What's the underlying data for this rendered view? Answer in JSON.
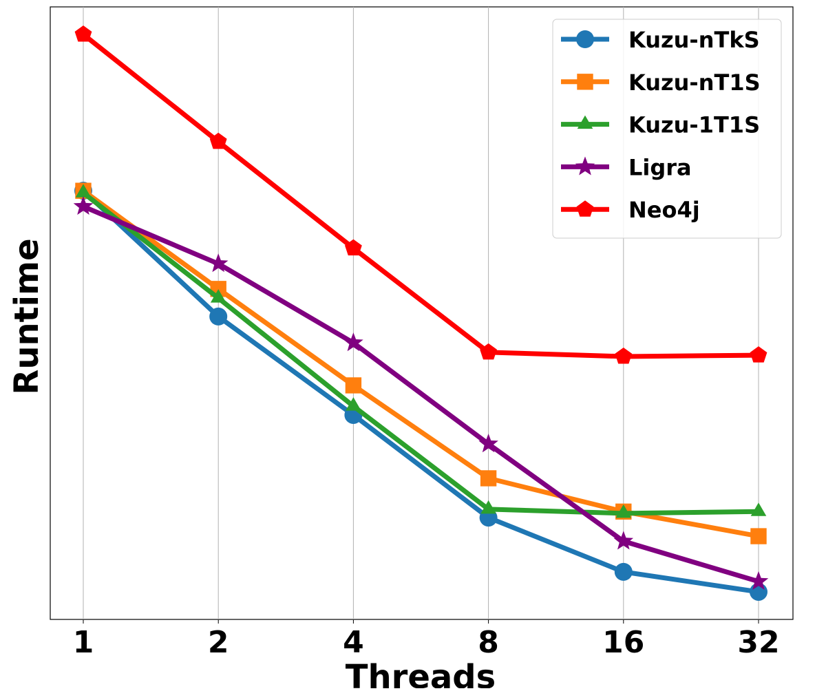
{
  "chart_data": {
    "type": "line",
    "x_label": "Threads",
    "y_label": "Runtime",
    "categories": [
      "1",
      "2",
      "4",
      "8",
      "16",
      "32"
    ],
    "ylim": [
      1,
      100
    ],
    "log_y": true,
    "grid": "x",
    "legend": "upper right",
    "series": [
      {
        "name": "Kuzu-nTkS",
        "color": "#1f77b4",
        "marker": "circle",
        "values": [
          25.1,
          9.75,
          4.65,
          2.15,
          1.43,
          1.23
        ]
      },
      {
        "name": "Kuzu-nT1S",
        "color": "#ff7f0e",
        "marker": "square",
        "values": [
          25.1,
          12.0,
          5.81,
          2.89,
          2.25,
          1.87
        ]
      },
      {
        "name": "Kuzu-1T1S",
        "color": "#2ca02c",
        "marker": "triangle",
        "values": [
          24.7,
          11.2,
          4.97,
          2.29,
          2.22,
          2.25
        ]
      },
      {
        "name": "Ligra",
        "color": "#800080",
        "marker": "star",
        "values": [
          22.3,
          14.5,
          8.0,
          3.74,
          1.8,
          1.33
        ]
      },
      {
        "name": "Neo4j",
        "color": "#ff0000",
        "marker": "pentagon",
        "values": [
          81.3,
          36.3,
          16.3,
          7.45,
          7.22,
          7.29
        ]
      }
    ]
  }
}
